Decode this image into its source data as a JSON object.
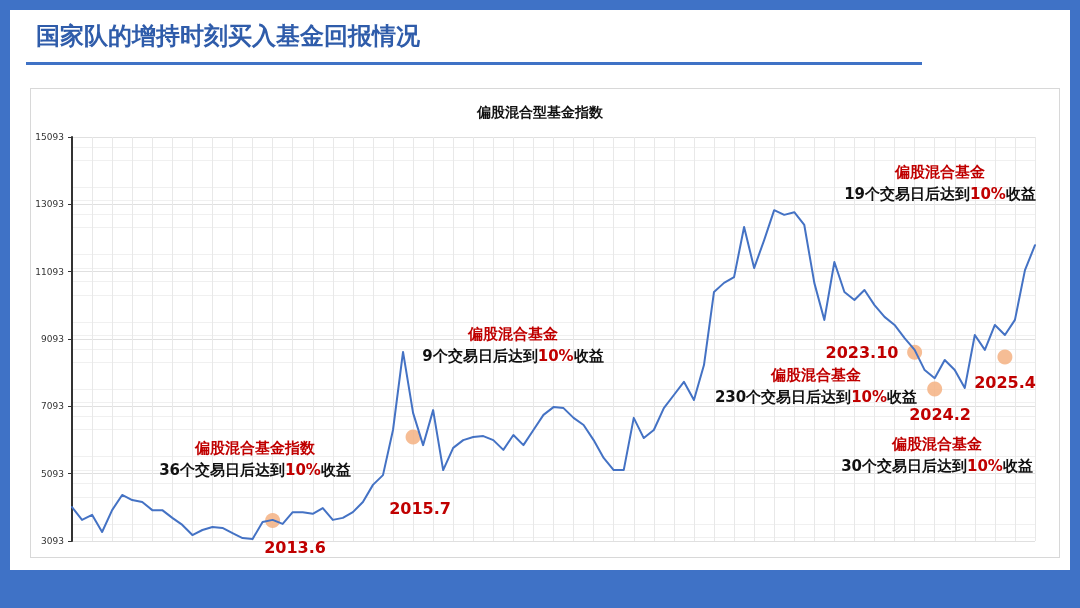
{
  "chart_data": {
    "type": "line",
    "title": "国家队的增持时刻买入基金回报情况",
    "subtitle": "偏股混合型基金指数",
    "categories": [
      null,
      null,
      null,
      null,
      null,
      null,
      null,
      null,
      null,
      null,
      null,
      null,
      null,
      null,
      null,
      null,
      null,
      null,
      null,
      null,
      null,
      null,
      null,
      null,
      null,
      null,
      null,
      null,
      null,
      null,
      null,
      null,
      null,
      null,
      null,
      null,
      null,
      null,
      null,
      null,
      null,
      null,
      null,
      null,
      null,
      null,
      null,
      null,
      null,
      null,
      null,
      null,
      null,
      null,
      null,
      null,
      null,
      null,
      null,
      null,
      null,
      null,
      null,
      null,
      null,
      null,
      null,
      null,
      null,
      null,
      null,
      null,
      null,
      null,
      null,
      null,
      null,
      null,
      null,
      null,
      null,
      null,
      null,
      null,
      null,
      null,
      null,
      null,
      null,
      null,
      null,
      null,
      null,
      null,
      null,
      null,
      null
    ],
    "series": [
      {
        "color": "#4472c4",
        "values": [
          4100,
          3720,
          3870,
          3360,
          4010,
          4460,
          4310,
          4250,
          4010,
          4010,
          3780,
          3570,
          3270,
          3420,
          3510,
          3480,
          3330,
          3180,
          3150,
          3660,
          3720,
          3600,
          3950,
          3950,
          3900,
          4070,
          3720,
          3780,
          3950,
          4250,
          4760,
          5050,
          6390,
          8710,
          6900,
          5940,
          6980,
          5200,
          5860,
          6090,
          6180,
          6210,
          6090,
          5800,
          6240,
          5940,
          6390,
          6840,
          7070,
          7040,
          6750,
          6540,
          6090,
          5560,
          5200,
          5200,
          6750,
          6150,
          6390,
          7040,
          7430,
          7820,
          7280,
          8320,
          10490,
          10760,
          10930,
          12420,
          11200,
          12030,
          12920,
          12780,
          12860,
          12480,
          10760,
          9660,
          11380,
          10490,
          10250,
          10550,
          10100,
          9750,
          9510,
          9120,
          8770,
          8170,
          7930,
          8470,
          8170,
          7640,
          9210,
          8770,
          9510,
          9210,
          9660,
          11140,
          11880
        ]
      },
      {
        "type": "scatter",
        "color": "#f4b183",
        "values": [
          null,
          null,
          null,
          null,
          null,
          null,
          null,
          null,
          null,
          null,
          null,
          null,
          null,
          null,
          null,
          null,
          null,
          null,
          null,
          null,
          3700,
          null,
          null,
          null,
          null,
          null,
          null,
          null,
          null,
          null,
          null,
          null,
          null,
          null,
          6180,
          null,
          null,
          null,
          null,
          null,
          null,
          null,
          null,
          null,
          null,
          null,
          null,
          null,
          null,
          null,
          null,
          null,
          null,
          null,
          null,
          null,
          null,
          null,
          null,
          null,
          null,
          null,
          null,
          null,
          null,
          null,
          null,
          null,
          null,
          null,
          null,
          null,
          null,
          null,
          null,
          null,
          null,
          null,
          null,
          null,
          null,
          null,
          null,
          null,
          8700,
          null,
          7610,
          null,
          null,
          null,
          null,
          null,
          null,
          8560,
          null,
          null,
          null
        ]
      }
    ],
    "ylim": [
      3093,
      15093
    ],
    "yticks": [
      3093,
      5093,
      7093,
      9093,
      11093,
      13093,
      15093
    ],
    "grid": true,
    "tick_labels": "y",
    "annotations": [
      "偏股混合基金指数\n36个交易日后达到10%收益",
      "2013.6",
      "2015.7",
      "偏股混合基金\n9个交易日后达到10%收益",
      "2023.10",
      "偏股混合基金\n230个交易日后达到10%收益",
      "2024.2",
      "偏股混合基金\n30个交易日后达到10%收益",
      "2025.4",
      "偏股混合基金\n19个交易日后达到10%收益"
    ]
  }
}
